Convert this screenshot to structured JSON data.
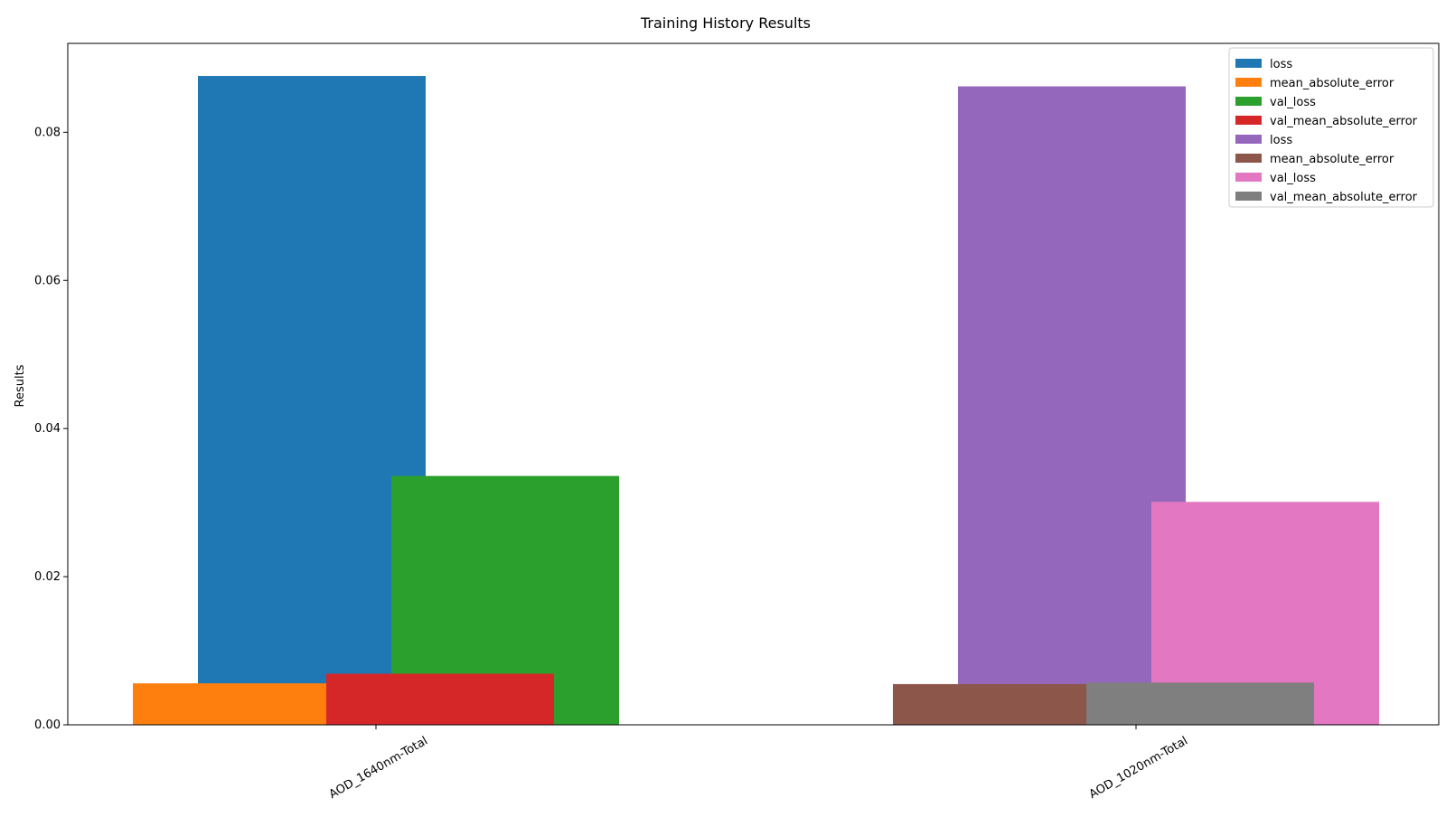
{
  "chart_data": {
    "type": "bar",
    "title": "Training History Results",
    "xlabel": "",
    "ylabel": "Results",
    "ylim": [
      0,
      0.092
    ],
    "yticks": [
      0.0,
      0.02,
      0.04,
      0.06,
      0.08
    ],
    "ytick_labels": [
      "0.00",
      "0.02",
      "0.04",
      "0.06",
      "0.08"
    ],
    "categories": [
      "AOD_1640nm-Total",
      "AOD_1020nm-Total"
    ],
    "grid": false,
    "legend_position": "top-right",
    "series": [
      {
        "name": "loss",
        "color": "#1f77b4",
        "category": "AOD_1640nm-Total",
        "value": 0.0876
      },
      {
        "name": "mean_absolute_error",
        "color": "#ff7f0e",
        "category": "AOD_1640nm-Total",
        "value": 0.0056
      },
      {
        "name": "val_loss",
        "color": "#2ca02c",
        "category": "AOD_1640nm-Total",
        "value": 0.0336
      },
      {
        "name": "val_mean_absolute_error",
        "color": "#d62728",
        "category": "AOD_1640nm-Total",
        "value": 0.0069
      },
      {
        "name": "loss",
        "color": "#9467bd",
        "category": "AOD_1020nm-Total",
        "value": 0.0862
      },
      {
        "name": "mean_absolute_error",
        "color": "#8c564b",
        "category": "AOD_1020nm-Total",
        "value": 0.0055
      },
      {
        "name": "val_loss",
        "color": "#e377c2",
        "category": "AOD_1020nm-Total",
        "value": 0.0301
      },
      {
        "name": "val_mean_absolute_error",
        "color": "#7f7f7f",
        "category": "AOD_1020nm-Total",
        "value": 0.0057
      }
    ]
  }
}
